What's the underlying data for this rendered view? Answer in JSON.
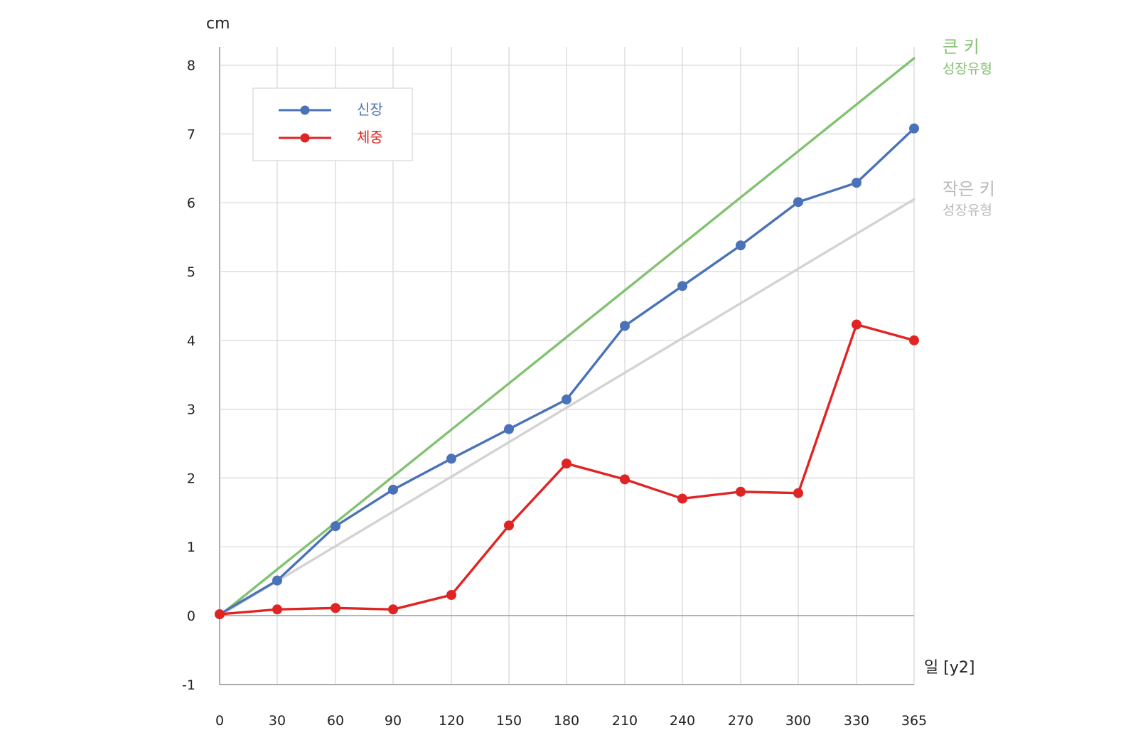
{
  "chart_data": {
    "type": "line",
    "ylabel": "cm",
    "xlabel": "일 [y2]",
    "x": [
      0,
      30,
      60,
      90,
      120,
      150,
      180,
      210,
      240,
      270,
      300,
      330,
      365
    ],
    "xlim": [
      0,
      365
    ],
    "ylim": [
      -1,
      8
    ],
    "yticks": [
      -1,
      0,
      1,
      2,
      3,
      4,
      5,
      6,
      7,
      8
    ],
    "grid": true,
    "legend_position": "top-left",
    "series": [
      {
        "name": "신장",
        "color": "#4a72b8",
        "values": [
          0.02,
          0.51,
          1.3,
          1.83,
          2.28,
          2.71,
          3.14,
          4.21,
          4.79,
          5.38,
          6.01,
          6.29,
          7.08
        ]
      },
      {
        "name": "체중",
        "color": "#e02424",
        "values": [
          0.02,
          0.09,
          0.11,
          0.09,
          0.3,
          1.31,
          2.21,
          1.98,
          1.7,
          1.8,
          1.78,
          4.23,
          4.0
        ]
      }
    ],
    "reference_lines": [
      {
        "title": "큰 키",
        "subtitle": "성장유형",
        "color": "#82c272",
        "from": [
          0,
          0
        ],
        "to": [
          365,
          8.1
        ]
      },
      {
        "title": "작은 키",
        "subtitle": "성장유형",
        "color": "#d3d3d3",
        "from": [
          0,
          0
        ],
        "to": [
          365,
          6.05
        ]
      }
    ]
  }
}
